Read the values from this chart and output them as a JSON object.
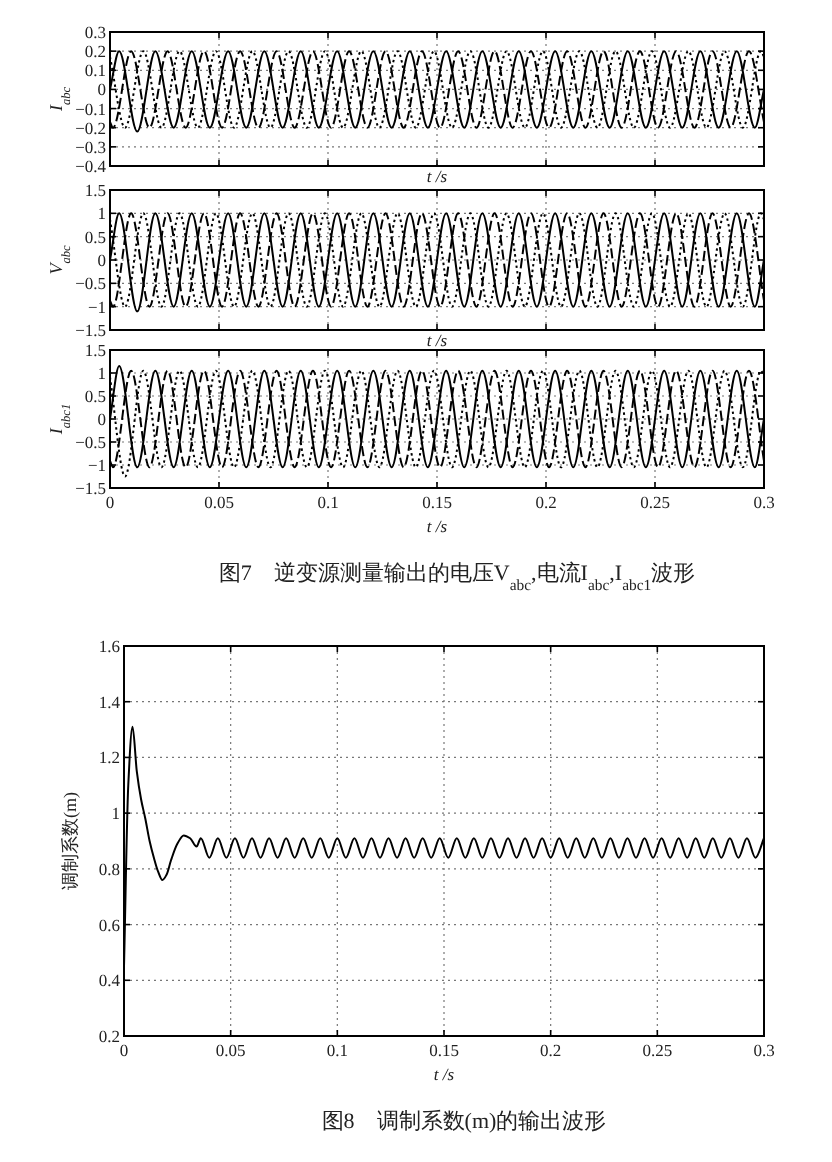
{
  "chart_data": [
    {
      "type": "line",
      "xlabel": "t /s",
      "ylabel": "I$_{abc}$",
      "xlim": [
        0,
        0.3
      ],
      "ylim": [
        -0.4,
        0.3
      ],
      "xticks": [
        0,
        0.05,
        0.1,
        0.15,
        0.2,
        0.25,
        0.3
      ],
      "yticks": [
        {
          "value": -0.4,
          "label": "−0.4"
        },
        {
          "value": -0.3,
          "label": "−0.3"
        },
        {
          "value": -0.2,
          "label": "−0.2"
        },
        {
          "value": -0.1,
          "label": "−0.1"
        },
        0,
        0.1,
        0.2,
        0.3
      ],
      "grid": true,
      "tick_labels": "y",
      "series": [
        {
          "color": "#000000",
          "line_style": "solid",
          "x": [
            0,
            0.0042,
            0.0125,
            0.0208,
            0.0292,
            0.0375,
            0.0458,
            0.0542,
            0.0625,
            0.0708,
            0.0792,
            0.0875,
            0.0958,
            0.1042,
            0.1125,
            0.1208,
            0.1292,
            0.1375,
            0.1458,
            0.1542,
            0.1625,
            0.1708,
            0.1792,
            0.1875,
            0.1958,
            0.2042,
            0.2125,
            0.2208,
            0.2292,
            0.2375,
            0.2458,
            0.2542,
            0.2625,
            0.2708,
            0.2792,
            0.2875,
            0.2958,
            0.3
          ],
          "values": [
            0,
            0.2,
            -0.22,
            0.2,
            -0.2,
            0.2,
            -0.2,
            0.2,
            -0.2,
            0.2,
            -0.2,
            0.2,
            -0.2,
            0.2,
            -0.2,
            0.2,
            -0.2,
            0.2,
            -0.2,
            0.2,
            -0.2,
            0.2,
            -0.2,
            0.2,
            -0.2,
            0.2,
            -0.2,
            0.2,
            -0.2,
            0.2,
            -0.2,
            0.2,
            -0.2,
            0.2,
            -0.2,
            0.2,
            -0.2,
            0
          ]
        },
        {
          "color": "#000000",
          "line_style": "dashed",
          "x": [
            0,
            0.0014,
            0.0097,
            0.0181,
            0.0264,
            0.0347,
            0.0431,
            0.0514,
            0.0597,
            0.0681,
            0.0764,
            0.0847,
            0.0931,
            0.1014,
            0.1097,
            0.1181,
            0.1264,
            0.1347,
            0.1431,
            0.1514,
            0.1597,
            0.1681,
            0.1764,
            0.1847,
            0.1931,
            0.2014,
            0.2097,
            0.2181,
            0.2264,
            0.2347,
            0.2431,
            0.2514,
            0.2597,
            0.2681,
            0.2764,
            0.2847,
            0.2931,
            0.3
          ],
          "values": [
            -0.17,
            -0.2,
            0.2,
            -0.2,
            0.2,
            -0.2,
            0.2,
            -0.2,
            0.2,
            -0.2,
            0.2,
            -0.2,
            0.2,
            -0.2,
            0.2,
            -0.2,
            0.2,
            -0.2,
            0.2,
            -0.2,
            0.2,
            -0.2,
            0.2,
            -0.2,
            0.2,
            -0.2,
            0.2,
            -0.2,
            0.2,
            -0.2,
            0.2,
            -0.2,
            0.2,
            -0.2,
            0.2,
            -0.2,
            0.2,
            -0.17
          ]
        },
        {
          "color": "#000000",
          "line_style": "dotted",
          "x": [
            0,
            0.0069,
            0.0153,
            0.0236,
            0.0319,
            0.0403,
            0.0486,
            0.0569,
            0.0653,
            0.0736,
            0.0819,
            0.0903,
            0.0986,
            0.1069,
            0.1153,
            0.1236,
            0.1319,
            0.1403,
            0.1486,
            0.1569,
            0.1653,
            0.1736,
            0.1819,
            0.1903,
            0.1986,
            0.2069,
            0.2153,
            0.2236,
            0.2319,
            0.2403,
            0.2486,
            0.2569,
            0.2653,
            0.2736,
            0.2819,
            0.2903,
            0.2986,
            0.3
          ],
          "values": [
            0.17,
            -0.2,
            0.2,
            -0.2,
            0.2,
            -0.2,
            0.2,
            -0.2,
            0.2,
            -0.2,
            0.2,
            -0.2,
            0.2,
            -0.2,
            0.2,
            -0.2,
            0.2,
            -0.2,
            0.2,
            -0.2,
            0.2,
            -0.2,
            0.2,
            -0.2,
            0.2,
            -0.2,
            0.2,
            -0.2,
            0.2,
            -0.2,
            0.2,
            -0.2,
            0.2,
            -0.2,
            0.2,
            -0.2,
            0.2,
            0.17
          ]
        }
      ]
    },
    {
      "type": "line",
      "xlabel": "t /s",
      "ylabel": "V$_{abc}$",
      "xlim": [
        0,
        0.3
      ],
      "ylim": [
        -1.5,
        1.5
      ],
      "xticks": [
        0,
        0.05,
        0.1,
        0.15,
        0.2,
        0.25,
        0.3
      ],
      "yticks": [
        {
          "value": -1.5,
          "label": "−1.5"
        },
        {
          "value": -1,
          "label": "−1"
        },
        {
          "value": -0.5,
          "label": "−0.5"
        },
        0,
        0.5,
        1,
        1.5
      ],
      "grid": true,
      "tick_labels": "y",
      "series": [
        {
          "color": "#000000",
          "line_style": "solid",
          "x": [
            0,
            0.0042,
            0.0125,
            0.0208,
            0.0292,
            0.0375,
            0.0458,
            0.0542,
            0.0625,
            0.0708,
            0.0792,
            0.0875,
            0.0958,
            0.1042,
            0.1125,
            0.1208,
            0.1292,
            0.1375,
            0.1458,
            0.1542,
            0.1625,
            0.1708,
            0.1792,
            0.1875,
            0.1958,
            0.2042,
            0.2125,
            0.2208,
            0.2292,
            0.2375,
            0.2458,
            0.2542,
            0.2625,
            0.2708,
            0.2792,
            0.2875,
            0.2958,
            0.3
          ],
          "values": [
            0,
            1,
            -1.1,
            1,
            -1,
            1,
            -1,
            1,
            -1,
            1,
            -1,
            1,
            -1,
            1,
            -1,
            1,
            -1,
            1,
            -1,
            1,
            -1,
            1,
            -1,
            1,
            -1,
            1,
            -1,
            1,
            -1,
            1,
            -1,
            1,
            -1,
            1,
            -1,
            1,
            -1,
            0
          ]
        },
        {
          "color": "#000000",
          "line_style": "dashed",
          "x": [
            0,
            0.0014,
            0.0097,
            0.0181,
            0.0264,
            0.0347,
            0.0431,
            0.0514,
            0.0597,
            0.0681,
            0.0764,
            0.0847,
            0.0931,
            0.1014,
            0.1097,
            0.1181,
            0.1264,
            0.1347,
            0.1431,
            0.1514,
            0.1597,
            0.1681,
            0.1764,
            0.1847,
            0.1931,
            0.2014,
            0.2097,
            0.2181,
            0.2264,
            0.2347,
            0.2431,
            0.2514,
            0.2597,
            0.2681,
            0.2764,
            0.2847,
            0.2931,
            0.3
          ],
          "values": [
            -0.87,
            -1,
            1,
            -1,
            1,
            -1,
            1,
            -1,
            1,
            -1,
            1,
            -1,
            1,
            -1,
            1,
            -1,
            1,
            -1,
            1,
            -1,
            1,
            -1,
            1,
            -1,
            1,
            -1,
            1,
            -1,
            1,
            -1,
            1,
            -1,
            1,
            -1,
            1,
            -1,
            1,
            -0.87
          ]
        },
        {
          "color": "#000000",
          "line_style": "dotted",
          "x": [
            0,
            0.0069,
            0.0153,
            0.0236,
            0.0319,
            0.0403,
            0.0486,
            0.0569,
            0.0653,
            0.0736,
            0.0819,
            0.0903,
            0.0986,
            0.1069,
            0.1153,
            0.1236,
            0.1319,
            0.1403,
            0.1486,
            0.1569,
            0.1653,
            0.1736,
            0.1819,
            0.1903,
            0.1986,
            0.2069,
            0.2153,
            0.2236,
            0.2319,
            0.2403,
            0.2486,
            0.2569,
            0.2653,
            0.2736,
            0.2819,
            0.2903,
            0.2986,
            0.3
          ],
          "values": [
            0.87,
            -1,
            1,
            -1,
            1,
            -1,
            1,
            -1,
            1,
            -1,
            1,
            -1,
            1,
            -1,
            1,
            -1,
            1,
            -1,
            1,
            -1,
            1,
            -1,
            1,
            -1,
            1,
            -1,
            1,
            -1,
            1,
            -1,
            1,
            -1,
            1,
            -1,
            1,
            -1,
            1,
            0.87
          ]
        }
      ]
    },
    {
      "type": "line",
      "xlabel": "t /s",
      "ylabel": "I$_{abc1}$",
      "xlim": [
        0,
        0.3
      ],
      "ylim": [
        -1.5,
        1.5
      ],
      "xticks": [
        0,
        0.05,
        0.1,
        0.15,
        0.2,
        0.25,
        0.3
      ],
      "yticks": [
        {
          "value": -1.5,
          "label": "−1.5"
        },
        {
          "value": -1,
          "label": "−1"
        },
        {
          "value": -0.5,
          "label": "−0.5"
        },
        0,
        0.5,
        1,
        1.5
      ],
      "grid": true,
      "annotations": [
        "图7　逆变源测量输出的电压V$_{abc}$,电流I$_{abc}$,I$_{abc1}$波形"
      ],
      "series": [
        {
          "color": "#000000",
          "line_style": "solid",
          "x": [
            0,
            0.0042,
            0.0125,
            0.0208,
            0.0292,
            0.0375,
            0.0458,
            0.0542,
            0.0625,
            0.0708,
            0.0792,
            0.0875,
            0.0958,
            0.1042,
            0.1125,
            0.1208,
            0.1292,
            0.1375,
            0.1458,
            0.1542,
            0.1625,
            0.1708,
            0.1792,
            0.1875,
            0.1958,
            0.2042,
            0.2125,
            0.2208,
            0.2292,
            0.2375,
            0.2458,
            0.2542,
            0.2625,
            0.2708,
            0.2792,
            0.2875,
            0.2958,
            0.3
          ],
          "values": [
            0,
            1.15,
            -1.05,
            1.05,
            -1.05,
            1.05,
            -1.05,
            1.05,
            -1.05,
            1.05,
            -1.05,
            1.05,
            -1.05,
            1.05,
            -1.05,
            1.05,
            -1.05,
            1.05,
            -1.05,
            1.05,
            -1.05,
            1.05,
            -1.05,
            1.05,
            -1.05,
            1.05,
            -1.05,
            1.05,
            -1.05,
            1.05,
            -1.05,
            1.05,
            -1.05,
            1.05,
            -1.05,
            1.05,
            -1.05,
            0
          ]
        },
        {
          "color": "#000000",
          "line_style": "dashed",
          "x": [
            0,
            0.0014,
            0.0097,
            0.0181,
            0.0264,
            0.0347,
            0.0431,
            0.0514,
            0.0597,
            0.0681,
            0.0764,
            0.0847,
            0.0931,
            0.1014,
            0.1097,
            0.1181,
            0.1264,
            0.1347,
            0.1431,
            0.1514,
            0.1597,
            0.1681,
            0.1764,
            0.1847,
            0.1931,
            0.2014,
            0.2097,
            0.2181,
            0.2264,
            0.2347,
            0.2431,
            0.2514,
            0.2597,
            0.2681,
            0.2764,
            0.2847,
            0.2931,
            0.3
          ],
          "values": [
            -0.91,
            -1.05,
            1.05,
            -1.05,
            1.05,
            -1.05,
            1.05,
            -1.05,
            1.05,
            -1.05,
            1.05,
            -1.05,
            1.05,
            -1.05,
            1.05,
            -1.05,
            1.05,
            -1.05,
            1.05,
            -1.05,
            1.05,
            -1.05,
            1.05,
            -1.05,
            1.05,
            -1.05,
            1.05,
            -1.05,
            1.05,
            -1.05,
            1.05,
            -1.05,
            1.05,
            -1.05,
            1.05,
            -1.05,
            1.05,
            -0.91
          ]
        },
        {
          "color": "#000000",
          "line_style": "dotted",
          "x": [
            0,
            0.0069,
            0.0153,
            0.0236,
            0.0319,
            0.0403,
            0.0486,
            0.0569,
            0.0653,
            0.0736,
            0.0819,
            0.0903,
            0.0986,
            0.1069,
            0.1153,
            0.1236,
            0.1319,
            0.1403,
            0.1486,
            0.1569,
            0.1653,
            0.1736,
            0.1819,
            0.1903,
            0.1986,
            0.2069,
            0.2153,
            0.2236,
            0.2319,
            0.2403,
            0.2486,
            0.2569,
            0.2653,
            0.2736,
            0.2819,
            0.2903,
            0.2986,
            0.3
          ],
          "values": [
            0.91,
            -1.25,
            1.05,
            -1.05,
            1.05,
            -1.05,
            1.05,
            -1.05,
            1.05,
            -1.05,
            1.05,
            -1.05,
            1.05,
            -1.05,
            1.05,
            -1.05,
            1.05,
            -1.05,
            1.05,
            -1.05,
            1.05,
            -1.05,
            1.05,
            -1.05,
            1.05,
            -1.05,
            1.05,
            -1.05,
            1.05,
            -1.05,
            1.05,
            -1.05,
            1.05,
            -1.05,
            1.05,
            -1.05,
            1.05,
            0.91
          ]
        }
      ]
    },
    {
      "type": "line",
      "xlabel": "t /s",
      "ylabel": "调制系数(m)",
      "xlim": [
        0,
        0.3
      ],
      "ylim": [
        0.2,
        1.6
      ],
      "xticks": [
        0,
        0.05,
        0.1,
        0.15,
        0.2,
        0.25,
        0.3
      ],
      "yticks": [
        0.2,
        0.4,
        0.6,
        0.8,
        1,
        1.2,
        1.4,
        1.6
      ],
      "grid": true,
      "annotations": [
        "图8　调制系数(m)的输出波形"
      ],
      "series": [
        {
          "color": "#000000",
          "line_style": "solid",
          "x": [
            0,
            0.002,
            0.004,
            0.006,
            0.008,
            0.01,
            0.012,
            0.014,
            0.016,
            0.018,
            0.02,
            0.022,
            0.025,
            0.028,
            0.031,
            0.034,
            0.036,
            0.04,
            0.044,
            0.048,
            0.052,
            0.056,
            0.06,
            0.064,
            0.068,
            0.072,
            0.076,
            0.08,
            0.084,
            0.088,
            0.092,
            0.096,
            0.1,
            0.104,
            0.108,
            0.112,
            0.116,
            0.12,
            0.124,
            0.128,
            0.132,
            0.136,
            0.14,
            0.144,
            0.148,
            0.152,
            0.156,
            0.16,
            0.164,
            0.168,
            0.172,
            0.176,
            0.18,
            0.184,
            0.188,
            0.192,
            0.196,
            0.2,
            0.204,
            0.208,
            0.212,
            0.216,
            0.22,
            0.224,
            0.228,
            0.232,
            0.236,
            0.24,
            0.244,
            0.248,
            0.252,
            0.256,
            0.26,
            0.264,
            0.268,
            0.272,
            0.276,
            0.28,
            0.284,
            0.288,
            0.292,
            0.296,
            0.3
          ],
          "values": [
            0.45,
            1.1,
            1.31,
            1.15,
            1.05,
            0.98,
            0.9,
            0.84,
            0.79,
            0.76,
            0.78,
            0.83,
            0.89,
            0.92,
            0.91,
            0.88,
            0.91,
            0.84,
            0.91,
            0.84,
            0.91,
            0.84,
            0.91,
            0.84,
            0.91,
            0.84,
            0.91,
            0.84,
            0.91,
            0.84,
            0.91,
            0.84,
            0.91,
            0.84,
            0.91,
            0.84,
            0.91,
            0.84,
            0.91,
            0.84,
            0.91,
            0.84,
            0.91,
            0.84,
            0.91,
            0.84,
            0.91,
            0.84,
            0.91,
            0.84,
            0.91,
            0.84,
            0.91,
            0.84,
            0.91,
            0.84,
            0.91,
            0.84,
            0.91,
            0.84,
            0.91,
            0.84,
            0.91,
            0.84,
            0.91,
            0.84,
            0.91,
            0.84,
            0.91,
            0.84,
            0.91,
            0.84,
            0.91,
            0.84,
            0.91,
            0.84,
            0.91,
            0.84,
            0.91,
            0.84,
            0.91,
            0.84,
            0.91
          ]
        }
      ]
    }
  ]
}
